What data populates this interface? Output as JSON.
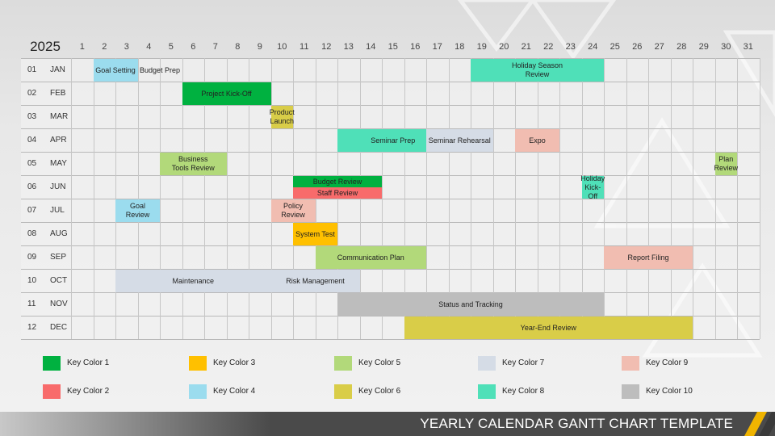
{
  "header": {
    "year": "2025"
  },
  "days": [
    "1",
    "2",
    "3",
    "4",
    "5",
    "6",
    "7",
    "8",
    "9",
    "10",
    "11",
    "12",
    "13",
    "14",
    "15",
    "16",
    "17",
    "18",
    "19",
    "20",
    "21",
    "22",
    "23",
    "24",
    "25",
    "26",
    "27",
    "28",
    "29",
    "30",
    "31"
  ],
  "months": [
    {
      "num": "01",
      "name": "JAN"
    },
    {
      "num": "02",
      "name": "FEB"
    },
    {
      "num": "03",
      "name": "MAR"
    },
    {
      "num": "04",
      "name": "APR"
    },
    {
      "num": "05",
      "name": "MAY"
    },
    {
      "num": "06",
      "name": "JUN"
    },
    {
      "num": "07",
      "name": "JUL"
    },
    {
      "num": "08",
      "name": "AUG"
    },
    {
      "num": "09",
      "name": "SEP"
    },
    {
      "num": "10",
      "name": "OCT"
    },
    {
      "num": "11",
      "name": "NOV"
    },
    {
      "num": "12",
      "name": "DEC"
    }
  ],
  "colors": {
    "key1": "#00b140",
    "key2": "#f86b6b",
    "key3": "#ffc000",
    "key4": "#9bdcee",
    "key5": "#b2d97a",
    "key6": "#d9cd48",
    "key7": "#d5dce6",
    "key8": "#4fe0b8",
    "key9": "#f1bdb1",
    "key10": "#bdbdbd"
  },
  "chart_data": {
    "type": "gantt",
    "tasks": [
      {
        "name": "Goal Setting",
        "month": 1,
        "start": 2,
        "end": 3,
        "color": "key4"
      },
      {
        "name": "Budget Prep",
        "month": 1,
        "start": 4,
        "end": 5,
        "color": "none"
      },
      {
        "name": "Holiday Season\nReview",
        "month": 1,
        "start": 19,
        "end": 24,
        "color": "key8"
      },
      {
        "name": "Project Kick-Off",
        "month": 2,
        "start": 6,
        "end": 9,
        "color": "key1"
      },
      {
        "name": "Product\nLaunch",
        "month": 3,
        "start": 10,
        "end": 10,
        "color": "key6"
      },
      {
        "name": "Seminar Prep",
        "month": 4,
        "start": 13,
        "end": 17,
        "color": "key8"
      },
      {
        "name": "Seminar Rehearsal",
        "month": 4,
        "start": 17,
        "end": 19,
        "color": "key7"
      },
      {
        "name": "Expo",
        "month": 4,
        "start": 21,
        "end": 22,
        "color": "key9"
      },
      {
        "name": "Business\nTools Review",
        "month": 5,
        "start": 5,
        "end": 7,
        "color": "key5"
      },
      {
        "name": "Plan Review",
        "month": 5,
        "start": 30,
        "end": 30,
        "color": "key5"
      },
      {
        "name": "Budget Review",
        "month": 6,
        "start": 11,
        "end": 14,
        "color": "key1"
      },
      {
        "name": "Staff Review",
        "month": 6,
        "start": 11,
        "end": 14,
        "color": "key2"
      },
      {
        "name": "Holiday\nKick-Off",
        "month": 6,
        "start": 24,
        "end": 24,
        "color": "key8"
      },
      {
        "name": "Goal\nReview",
        "month": 7,
        "start": 3,
        "end": 4,
        "color": "key4"
      },
      {
        "name": "Policy\nReview",
        "month": 7,
        "start": 10,
        "end": 11,
        "color": "key9"
      },
      {
        "name": "System Test",
        "month": 8,
        "start": 11,
        "end": 12,
        "color": "key3"
      },
      {
        "name": "Communication Plan",
        "month": 9,
        "start": 12,
        "end": 16,
        "color": "key5"
      },
      {
        "name": "Report Filing",
        "month": 9,
        "start": 25,
        "end": 28,
        "color": "key9"
      },
      {
        "name": "Maintenance",
        "month": 10,
        "start": 3,
        "end": 9,
        "color": "key7"
      },
      {
        "name": "Risk Management",
        "month": 10,
        "start": 10,
        "end": 13,
        "color": "key7"
      },
      {
        "name": "Status and Tracking",
        "month": 11,
        "start": 13,
        "end": 24,
        "color": "key10"
      },
      {
        "name": "Year-End Review",
        "month": 12,
        "start": 16,
        "end": 28,
        "color": "key6"
      }
    ]
  },
  "legend": [
    {
      "label": "Key Color 1",
      "color": "key1"
    },
    {
      "label": "Key Color 3",
      "color": "key3"
    },
    {
      "label": "Key Color 5",
      "color": "key5"
    },
    {
      "label": "Key Color 7",
      "color": "key7"
    },
    {
      "label": "Key Color 9",
      "color": "key9"
    },
    {
      "label": "Key Color 2",
      "color": "key2"
    },
    {
      "label": "Key Color 4",
      "color": "key4"
    },
    {
      "label": "Key Color 6",
      "color": "key6"
    },
    {
      "label": "Key Color 8",
      "color": "key8"
    },
    {
      "label": "Key Color 10",
      "color": "key10"
    }
  ],
  "footer": {
    "title": "YEARLY CALENDAR GANTT CHART TEMPLATE"
  }
}
